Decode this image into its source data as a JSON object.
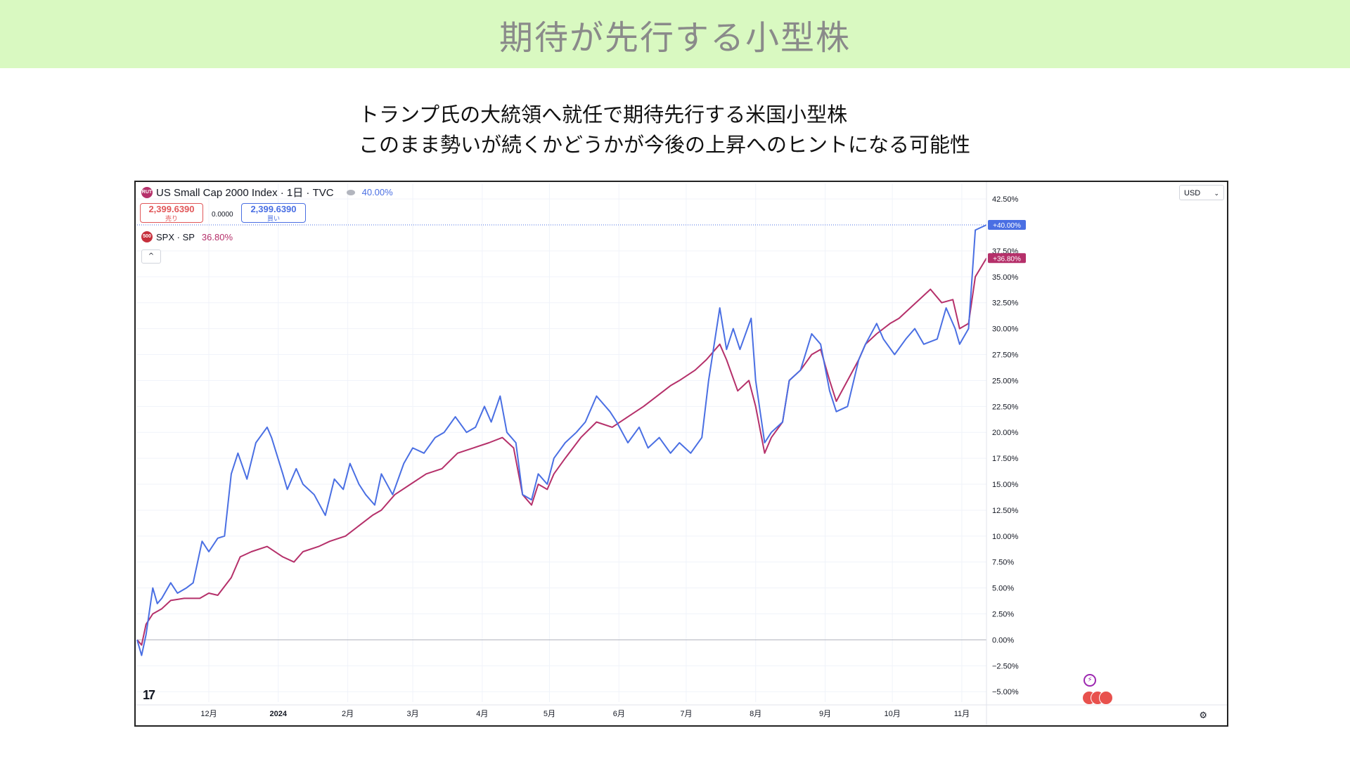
{
  "page": {
    "banner_title": "期待が先行する小型株",
    "subtitle_line1": "トランプ氏の大統領へ就任で期待先行する米国小型株",
    "subtitle_line2": "このまま勢いが続くかどうかが今後の上昇へのヒントになる可能性"
  },
  "widget": {
    "main_symbol": "US Small Cap 2000 Index · 1日 · TVC",
    "main_icon_text": "RUT",
    "main_change": "40.00%",
    "sell_price": "2,399.6390",
    "sell_label": "売り",
    "spread": "0.0000",
    "buy_price": "2,399.6390",
    "buy_label": "買い",
    "compare_symbol": "SPX · SP",
    "compare_icon_text": "500",
    "compare_change": "36.80%",
    "collapse_glyph": "^",
    "currency": "USD",
    "currency_chevron": "⌄",
    "tv_logo": "17",
    "settings_glyph": "⚙",
    "flash_glyph": "⚡"
  },
  "colors": {
    "banner_bg": "#d9f9c1",
    "small_cap": "#4a6fe3",
    "spx": "#b5306a",
    "sell": "#e15759",
    "buy": "#4a6fe3"
  },
  "chart_data": {
    "type": "line",
    "y_unit": "percent change",
    "ylim": [
      -6,
      44
    ],
    "yticks": [
      -5,
      -2.5,
      0,
      2.5,
      5,
      7.5,
      10,
      12.5,
      15,
      17.5,
      20,
      22.5,
      25,
      27.5,
      30,
      32.5,
      35,
      37.5,
      42.5
    ],
    "ytick_labels": [
      "−5.00%",
      "−2.50%",
      "0.00%",
      "2.50%",
      "5.00%",
      "7.50%",
      "10.00%",
      "12.50%",
      "15.00%",
      "17.50%",
      "20.00%",
      "22.50%",
      "25.00%",
      "27.50%",
      "30.00%",
      "32.50%",
      "35.00%",
      "37.50%",
      "42.50%"
    ],
    "x_start": "2023-10-30",
    "x_end": "2024-11-12",
    "x_ticks": [
      {
        "date": "2023-12-01",
        "label": "12月",
        "bold": false
      },
      {
        "date": "2024-01-01",
        "label": "2024",
        "bold": true
      },
      {
        "date": "2024-02-01",
        "label": "2月",
        "bold": false
      },
      {
        "date": "2024-03-01",
        "label": "3月",
        "bold": false
      },
      {
        "date": "2024-04-01",
        "label": "4月",
        "bold": false
      },
      {
        "date": "2024-05-01",
        "label": "5月",
        "bold": false
      },
      {
        "date": "2024-06-01",
        "label": "6月",
        "bold": false
      },
      {
        "date": "2024-07-01",
        "label": "7月",
        "bold": false
      },
      {
        "date": "2024-08-01",
        "label": "8月",
        "bold": false
      },
      {
        "date": "2024-09-01",
        "label": "9月",
        "bold": false
      },
      {
        "date": "2024-10-01",
        "label": "10月",
        "bold": false
      },
      {
        "date": "2024-11-01",
        "label": "11月",
        "bold": false
      }
    ],
    "series": [
      {
        "name": "US Small Cap 2000 Index",
        "color": "#4a6fe3",
        "last_label": "+40.00%",
        "points": [
          [
            "2023-10-30",
            0
          ],
          [
            "2023-11-01",
            -1.5
          ],
          [
            "2023-11-03",
            0.5
          ],
          [
            "2023-11-06",
            5
          ],
          [
            "2023-11-08",
            3.5
          ],
          [
            "2023-11-10",
            4
          ],
          [
            "2023-11-14",
            5.5
          ],
          [
            "2023-11-17",
            4.5
          ],
          [
            "2023-11-21",
            5
          ],
          [
            "2023-11-24",
            5.5
          ],
          [
            "2023-11-28",
            9.5
          ],
          [
            "2023-12-01",
            8.5
          ],
          [
            "2023-12-05",
            9.8
          ],
          [
            "2023-12-08",
            10
          ],
          [
            "2023-12-11",
            16
          ],
          [
            "2023-12-14",
            18
          ],
          [
            "2023-12-18",
            15.5
          ],
          [
            "2023-12-22",
            19
          ],
          [
            "2023-12-27",
            20.5
          ],
          [
            "2023-12-29",
            19.5
          ],
          [
            "2024-01-03",
            16
          ],
          [
            "2024-01-05",
            14.5
          ],
          [
            "2024-01-09",
            16.5
          ],
          [
            "2024-01-12",
            15
          ],
          [
            "2024-01-17",
            14
          ],
          [
            "2024-01-22",
            12
          ],
          [
            "2024-01-26",
            15.5
          ],
          [
            "2024-01-30",
            14.5
          ],
          [
            "2024-02-02",
            17
          ],
          [
            "2024-02-06",
            15
          ],
          [
            "2024-02-09",
            14
          ],
          [
            "2024-02-13",
            13
          ],
          [
            "2024-02-16",
            16
          ],
          [
            "2024-02-21",
            14
          ],
          [
            "2024-02-26",
            17
          ],
          [
            "2024-03-01",
            18.5
          ],
          [
            "2024-03-06",
            18
          ],
          [
            "2024-03-11",
            19.5
          ],
          [
            "2024-03-15",
            20
          ],
          [
            "2024-03-20",
            21.5
          ],
          [
            "2024-03-25",
            20
          ],
          [
            "2024-03-29",
            20.5
          ],
          [
            "2024-04-02",
            22.5
          ],
          [
            "2024-04-05",
            21
          ],
          [
            "2024-04-09",
            23.5
          ],
          [
            "2024-04-12",
            20
          ],
          [
            "2024-04-16",
            19
          ],
          [
            "2024-04-19",
            14
          ],
          [
            "2024-04-23",
            13.5
          ],
          [
            "2024-04-26",
            16
          ],
          [
            "2024-04-30",
            15
          ],
          [
            "2024-05-03",
            17.5
          ],
          [
            "2024-05-08",
            19
          ],
          [
            "2024-05-13",
            20
          ],
          [
            "2024-05-17",
            21
          ],
          [
            "2024-05-22",
            23.5
          ],
          [
            "2024-05-28",
            22
          ],
          [
            "2024-05-31",
            21
          ],
          [
            "2024-06-05",
            19
          ],
          [
            "2024-06-10",
            20.5
          ],
          [
            "2024-06-14",
            18.5
          ],
          [
            "2024-06-19",
            19.5
          ],
          [
            "2024-06-24",
            18
          ],
          [
            "2024-06-28",
            19
          ],
          [
            "2024-07-03",
            18
          ],
          [
            "2024-07-08",
            19.5
          ],
          [
            "2024-07-11",
            25
          ],
          [
            "2024-07-16",
            32
          ],
          [
            "2024-07-19",
            28
          ],
          [
            "2024-07-22",
            30
          ],
          [
            "2024-07-25",
            28
          ],
          [
            "2024-07-30",
            31
          ],
          [
            "2024-08-01",
            25
          ],
          [
            "2024-08-05",
            19
          ],
          [
            "2024-08-08",
            20
          ],
          [
            "2024-08-13",
            21
          ],
          [
            "2024-08-16",
            25
          ],
          [
            "2024-08-21",
            26
          ],
          [
            "2024-08-26",
            29.5
          ],
          [
            "2024-08-30",
            28.5
          ],
          [
            "2024-09-03",
            24
          ],
          [
            "2024-09-06",
            22
          ],
          [
            "2024-09-11",
            22.5
          ],
          [
            "2024-09-16",
            27
          ],
          [
            "2024-09-19",
            28.5
          ],
          [
            "2024-09-24",
            30.5
          ],
          [
            "2024-09-27",
            29
          ],
          [
            "2024-10-02",
            27.5
          ],
          [
            "2024-10-07",
            29
          ],
          [
            "2024-10-11",
            30
          ],
          [
            "2024-10-15",
            28.5
          ],
          [
            "2024-10-21",
            29
          ],
          [
            "2024-10-25",
            32
          ],
          [
            "2024-10-29",
            30
          ],
          [
            "2024-10-31",
            28.5
          ],
          [
            "2024-11-04",
            30
          ],
          [
            "2024-11-07",
            39.5
          ],
          [
            "2024-11-12",
            40
          ]
        ]
      },
      {
        "name": "SPX",
        "color": "#b5306a",
        "last_label": "+36.80%",
        "points": [
          [
            "2023-10-30",
            0
          ],
          [
            "2023-11-01",
            -0.5
          ],
          [
            "2023-11-03",
            1.5
          ],
          [
            "2023-11-06",
            2.5
          ],
          [
            "2023-11-10",
            3
          ],
          [
            "2023-11-14",
            3.8
          ],
          [
            "2023-11-20",
            4
          ],
          [
            "2023-11-27",
            4
          ],
          [
            "2023-12-01",
            4.5
          ],
          [
            "2023-12-05",
            4.3
          ],
          [
            "2023-12-11",
            6
          ],
          [
            "2023-12-15",
            8
          ],
          [
            "2023-12-20",
            8.5
          ],
          [
            "2023-12-27",
            9
          ],
          [
            "2024-01-03",
            8
          ],
          [
            "2024-01-08",
            7.5
          ],
          [
            "2024-01-12",
            8.5
          ],
          [
            "2024-01-19",
            9
          ],
          [
            "2024-01-24",
            9.5
          ],
          [
            "2024-01-31",
            10
          ],
          [
            "2024-02-06",
            11
          ],
          [
            "2024-02-12",
            12
          ],
          [
            "2024-02-16",
            12.5
          ],
          [
            "2024-02-22",
            14
          ],
          [
            "2024-02-29",
            15
          ],
          [
            "2024-03-07",
            16
          ],
          [
            "2024-03-14",
            16.5
          ],
          [
            "2024-03-21",
            18
          ],
          [
            "2024-03-28",
            18.5
          ],
          [
            "2024-04-04",
            19
          ],
          [
            "2024-04-10",
            19.5
          ],
          [
            "2024-04-15",
            18.5
          ],
          [
            "2024-04-19",
            14
          ],
          [
            "2024-04-23",
            13
          ],
          [
            "2024-04-26",
            15
          ],
          [
            "2024-04-30",
            14.5
          ],
          [
            "2024-05-03",
            16
          ],
          [
            "2024-05-08",
            17.5
          ],
          [
            "2024-05-15",
            19.5
          ],
          [
            "2024-05-22",
            21
          ],
          [
            "2024-05-29",
            20.5
          ],
          [
            "2024-06-05",
            21.5
          ],
          [
            "2024-06-12",
            22.5
          ],
          [
            "2024-06-18",
            23.5
          ],
          [
            "2024-06-24",
            24.5
          ],
          [
            "2024-06-28",
            25
          ],
          [
            "2024-07-05",
            26
          ],
          [
            "2024-07-10",
            27
          ],
          [
            "2024-07-16",
            28.5
          ],
          [
            "2024-07-19",
            27
          ],
          [
            "2024-07-24",
            24
          ],
          [
            "2024-07-29",
            25
          ],
          [
            "2024-08-01",
            22.5
          ],
          [
            "2024-08-05",
            18
          ],
          [
            "2024-08-08",
            19.5
          ],
          [
            "2024-08-13",
            21
          ],
          [
            "2024-08-16",
            25
          ],
          [
            "2024-08-21",
            26
          ],
          [
            "2024-08-26",
            27.5
          ],
          [
            "2024-08-30",
            28
          ],
          [
            "2024-09-03",
            25
          ],
          [
            "2024-09-06",
            23
          ],
          [
            "2024-09-11",
            25
          ],
          [
            "2024-09-16",
            27
          ],
          [
            "2024-09-19",
            28.5
          ],
          [
            "2024-09-24",
            29.5
          ],
          [
            "2024-09-30",
            30.5
          ],
          [
            "2024-10-04",
            31
          ],
          [
            "2024-10-09",
            32
          ],
          [
            "2024-10-14",
            33
          ],
          [
            "2024-10-18",
            33.8
          ],
          [
            "2024-10-23",
            32.5
          ],
          [
            "2024-10-28",
            32.8
          ],
          [
            "2024-10-31",
            30
          ],
          [
            "2024-11-04",
            30.5
          ],
          [
            "2024-11-07",
            35
          ],
          [
            "2024-11-12",
            36.8
          ]
        ]
      }
    ],
    "reference_line": {
      "value": 40,
      "label": "+40.00%"
    },
    "grid": true,
    "legend_position": "top-left"
  }
}
